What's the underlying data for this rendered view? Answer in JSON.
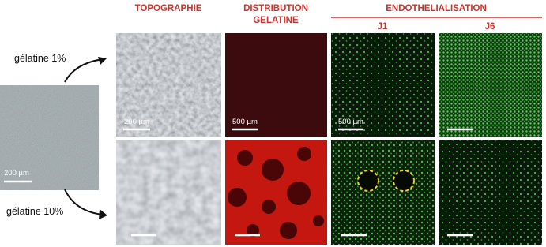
{
  "figure": {
    "headers": {
      "topography": "TOPOGRAPHIE",
      "distribution": [
        "DISTRIBUTION",
        "GELATINE"
      ],
      "endothelialisation": "ENDOTHELIALISATION",
      "days": [
        "J1",
        "J6"
      ]
    },
    "rows": [
      "gélatine 1%",
      "gélatine 10%"
    ],
    "scale_labels": {
      "substrate": "200 µm",
      "topography": "200 µm",
      "distribution": "500 µm",
      "endothelialisation": "500 µm"
    }
  }
}
